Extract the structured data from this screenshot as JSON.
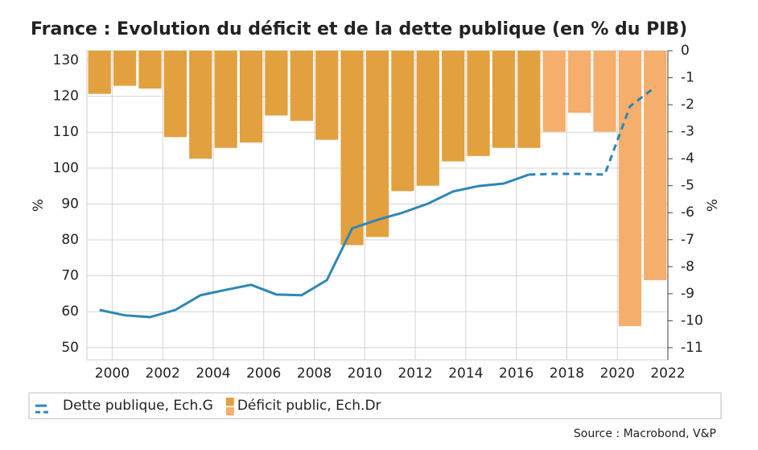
{
  "chart_data": {
    "type": "bar-line",
    "title": "France : Evolution du déficit et de la dette publique (en % du PIB)",
    "source": "Source : Macrobond, V&P",
    "x": [
      1999,
      2000,
      2001,
      2002,
      2003,
      2004,
      2005,
      2006,
      2007,
      2008,
      2009,
      2010,
      2011,
      2012,
      2013,
      2014,
      2015,
      2016,
      2017,
      2018,
      2019,
      2020,
      2021
    ],
    "xlim": [
      1999,
      2022
    ],
    "xticks": [
      2000,
      2002,
      2004,
      2006,
      2008,
      2010,
      2012,
      2014,
      2016,
      2018,
      2020,
      2022
    ],
    "ylabel": "%",
    "y2label": "%",
    "ylim": [
      46.6,
      132.7
    ],
    "yticks": [
      50,
      60,
      70,
      80,
      90,
      100,
      110,
      120,
      130
    ],
    "y2lim": [
      -11.45,
      0
    ],
    "y2ticks": [
      0,
      -1,
      -2,
      -3,
      -4,
      -5,
      -6,
      -7,
      -8,
      -9,
      -10,
      -11
    ],
    "grid": true,
    "forecast_from": 2017,
    "series": [
      {
        "name": "Dette publique, Ech.G",
        "type": "line",
        "color": "#2e86b8",
        "axis": "y",
        "values": [
          60.5,
          59,
          58.5,
          60.5,
          64.6,
          66.1,
          67.5,
          64.8,
          64.6,
          68.8,
          83.2,
          85.6,
          87.6,
          90.1,
          93.5,
          95.0,
          95.7,
          98.2,
          98.4,
          98.4,
          98.2,
          117.2,
          122.6
        ]
      },
      {
        "name": "Déficit public, Ech.Dr",
        "type": "bar",
        "color": "#e3a03f",
        "forecast_color": "#f5ae6b",
        "axis": "y2",
        "values": [
          -1.6,
          -1.3,
          -1.4,
          -3.2,
          -4.0,
          -3.6,
          -3.4,
          -2.4,
          -2.6,
          -3.3,
          -7.2,
          -6.9,
          -5.2,
          -5.0,
          -4.1,
          -3.9,
          -3.6,
          -3.6,
          -3.0,
          -2.3,
          -3.0,
          -10.2,
          -8.5
        ]
      }
    ]
  }
}
